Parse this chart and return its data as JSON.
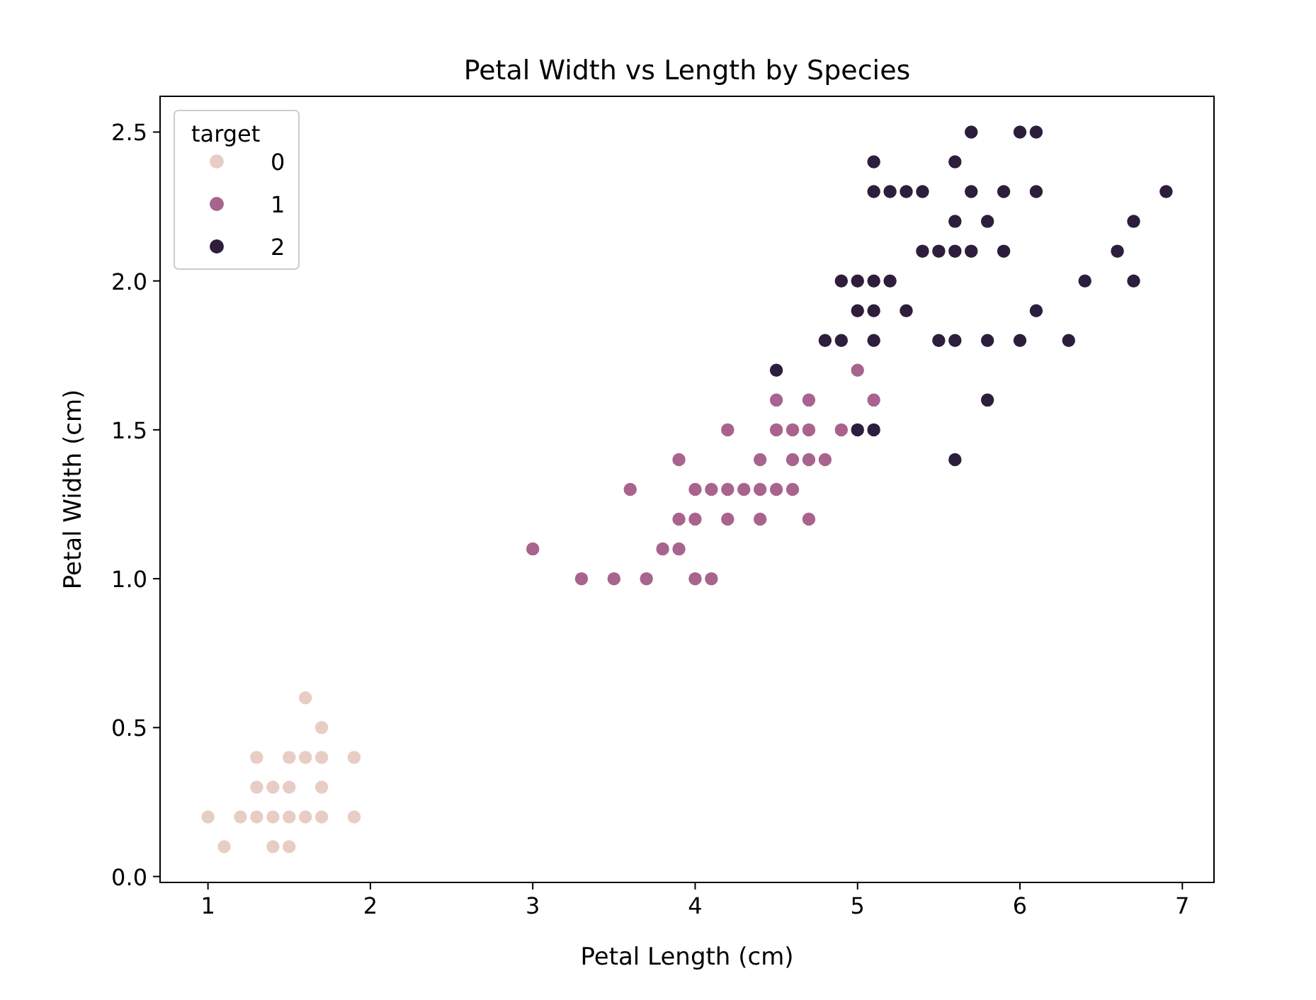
{
  "chart_data": {
    "type": "scatter",
    "title": "Petal Width vs Length by Species",
    "xlabel": "Petal Length (cm)",
    "ylabel": "Petal Width (cm)",
    "legend_title": "target",
    "legend": "top left",
    "marker": "circle",
    "grid": false,
    "xlim": [
      0.705,
      7.195
    ],
    "xticks": [
      1,
      2,
      3,
      4,
      5,
      6,
      7
    ],
    "ylim": [
      -0.02,
      2.62
    ],
    "yticks": [
      {
        "value": 0,
        "label": "0.0"
      },
      0.5,
      {
        "value": 1,
        "label": "1.0"
      },
      1.5,
      {
        "value": 2,
        "label": "2.0"
      },
      2.5
    ],
    "series": [
      {
        "name": "0",
        "color": "#e8cdc5",
        "x": [
          1.4,
          1.3,
          1.5,
          1.7,
          1.4,
          1.5,
          1.6,
          1.4,
          1.1,
          1.2,
          1.5,
          1.3,
          1.7,
          1.5,
          1.7,
          1.0,
          1.7,
          1.9,
          1.6,
          1.3,
          1.6,
          1.9
        ],
        "values": [
          0.2,
          0.2,
          0.2,
          0.4,
          0.3,
          0.1,
          0.2,
          0.1,
          0.1,
          0.2,
          0.4,
          0.4,
          0.3,
          0.3,
          0.2,
          0.2,
          0.5,
          0.2,
          0.4,
          0.3,
          0.6,
          0.4
        ]
      },
      {
        "name": "1",
        "color": "#a8648c",
        "x": [
          4.7,
          4.5,
          4.9,
          4.0,
          4.6,
          4.5,
          4.7,
          3.3,
          4.6,
          3.9,
          3.5,
          4.2,
          4.0,
          3.6,
          4.4,
          4.1,
          3.9,
          4.7,
          4.3,
          4.8,
          5.0,
          3.8,
          3.7,
          3.9,
          5.1,
          4.5,
          4.7,
          4.4,
          4.1,
          4.4,
          4.6,
          4.0,
          4.2,
          4.2,
          3.0
        ],
        "values": [
          1.4,
          1.5,
          1.5,
          1.3,
          1.5,
          1.3,
          1.6,
          1.0,
          1.3,
          1.4,
          1.0,
          1.5,
          1.0,
          1.3,
          1.4,
          1.0,
          1.1,
          1.2,
          1.3,
          1.4,
          1.7,
          1.1,
          1.0,
          1.2,
          1.6,
          1.6,
          1.5,
          1.3,
          1.3,
          1.2,
          1.4,
          1.2,
          1.3,
          1.2,
          1.1
        ]
      },
      {
        "name": "2",
        "color": "#2d1e3e",
        "x": [
          6.0,
          5.1,
          5.9,
          5.6,
          5.8,
          6.6,
          4.5,
          6.3,
          5.8,
          6.1,
          5.1,
          5.3,
          5.5,
          5.0,
          5.1,
          5.3,
          5.5,
          6.7,
          6.9,
          5.0,
          5.7,
          4.9,
          6.7,
          4.9,
          5.7,
          6.0,
          4.8,
          5.6,
          5.8,
          6.1,
          6.4,
          5.6,
          5.1,
          5.6,
          6.1,
          5.6,
          5.4,
          5.1,
          5.9,
          5.7,
          5.2,
          5.0,
          5.2,
          5.4,
          5.1
        ],
        "values": [
          2.5,
          1.9,
          2.1,
          1.8,
          2.2,
          2.1,
          1.7,
          1.8,
          1.8,
          2.5,
          2.0,
          1.9,
          2.1,
          2.0,
          2.4,
          2.3,
          1.8,
          2.2,
          2.3,
          1.5,
          2.3,
          2.0,
          2.0,
          1.8,
          2.1,
          1.8,
          1.8,
          2.1,
          1.6,
          1.9,
          2.0,
          2.2,
          1.5,
          1.4,
          2.3,
          2.4,
          2.1,
          2.3,
          2.3,
          2.5,
          2.3,
          1.9,
          2.0,
          2.3,
          1.8
        ]
      }
    ]
  }
}
